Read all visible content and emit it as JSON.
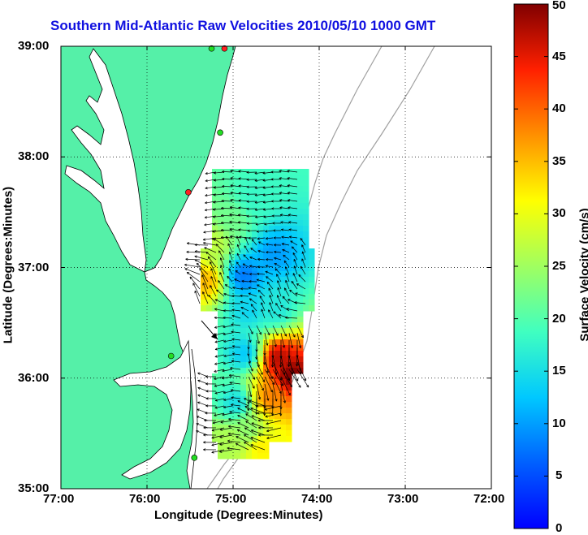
{
  "title": "Southern Mid-Atlantic Raw Velocities 2010/05/10 1000 GMT",
  "xlabel": "Longitude (Degrees:Minutes)",
  "ylabel": "Latitude (Degrees:Minutes)",
  "colorbar": {
    "label": "Surface Velocity (cm/s)",
    "min": 0,
    "max": 50,
    "tick_labels": [
      "0",
      "5",
      "10",
      "15",
      "20",
      "25",
      "30",
      "35",
      "40",
      "45",
      "50"
    ],
    "colormap": "jet"
  },
  "x_tick_labels": [
    "77:00",
    "76:00",
    "75:00",
    "74:00",
    "73:00",
    "72:00"
  ],
  "y_tick_labels": [
    "39:00",
    "38:00",
    "37:00",
    "36:00",
    "35:00"
  ],
  "colors": {
    "title": "#1010e0",
    "land": "#55f0a8",
    "bathymetry": "#a0a0a0",
    "station_active": "#22dd22",
    "station_inactive": "#ff2020"
  },
  "chart_data": {
    "type": "heatmap",
    "xlim": [
      -77,
      -72
    ],
    "ylim": [
      35,
      39
    ],
    "grid": true,
    "value_units": "cm/s",
    "stations": [
      {
        "lon": -75.1,
        "lat": 38.98,
        "status": "inactive"
      },
      {
        "lon": -75.25,
        "lat": 38.98,
        "status": "active"
      },
      {
        "lon": -75.15,
        "lat": 38.22,
        "status": "active"
      },
      {
        "lon": -75.52,
        "lat": 37.68,
        "status": "inactive"
      },
      {
        "lon": -75.72,
        "lat": 36.2,
        "status": "active"
      },
      {
        "lon": -75.45,
        "lat": 35.28,
        "status": "active"
      }
    ],
    "velocity_regions": [
      {
        "lon": -74.8,
        "lat": 37.65,
        "speed": 18
      },
      {
        "lon": -75.05,
        "lat": 37.45,
        "speed": 22
      },
      {
        "lon": -75.25,
        "lat": 37.25,
        "speed": 27
      },
      {
        "lon": -75.35,
        "lat": 36.9,
        "speed": 35
      },
      {
        "lon": -74.9,
        "lat": 36.95,
        "speed": 8
      },
      {
        "lon": -74.55,
        "lat": 37.15,
        "speed": 10
      },
      {
        "lon": -74.85,
        "lat": 36.65,
        "speed": 14
      },
      {
        "lon": -74.55,
        "lat": 36.65,
        "speed": 16
      },
      {
        "lon": -74.9,
        "lat": 36.25,
        "speed": 13
      },
      {
        "lon": -74.5,
        "lat": 36.2,
        "speed": 47
      },
      {
        "lon": -74.35,
        "lat": 36.05,
        "speed": 50
      },
      {
        "lon": -74.6,
        "lat": 35.85,
        "speed": 38
      },
      {
        "lon": -75.0,
        "lat": 35.8,
        "speed": 15
      },
      {
        "lon": -74.85,
        "lat": 35.55,
        "speed": 24
      },
      {
        "lon": -74.7,
        "lat": 35.4,
        "speed": 32
      },
      {
        "lon": -75.1,
        "lat": 35.45,
        "speed": 26
      }
    ]
  }
}
